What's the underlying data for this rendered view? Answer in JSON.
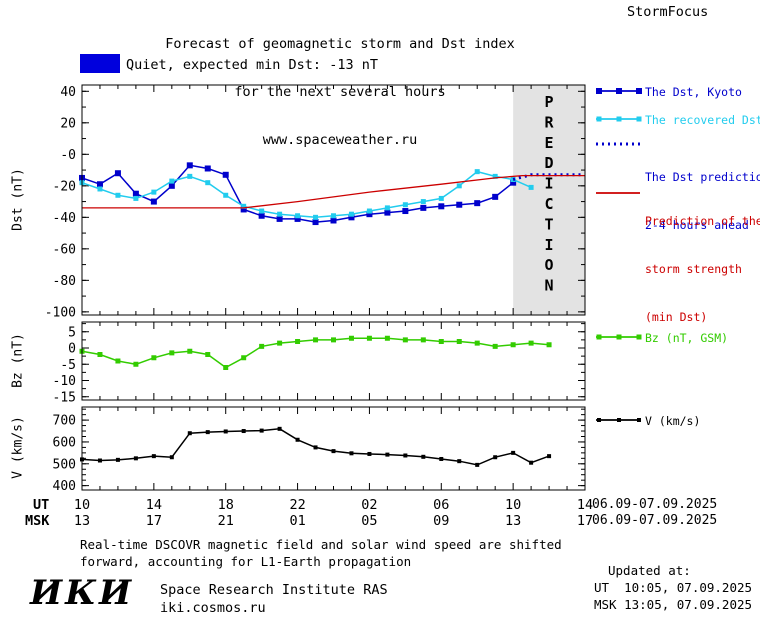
{
  "header": {
    "title_line1": "Forecast of geomagnetic storm and Dst index",
    "title_line2": "for the next several hours",
    "title_line3": "www.spaceweather.ru",
    "brand": "StormFocus"
  },
  "status": {
    "swatch_color": "#0000dd",
    "text": "Quiet, expected min Dst: -13 nT"
  },
  "legend": {
    "dst_kyoto": "The Dst, Kyoto",
    "recovered": "The recovered Dst",
    "prediction_line1": "The Dst prediction",
    "prediction_line2": "2-4 hours ahead",
    "storm_line1": "Prediction of the",
    "storm_line2": "storm strength",
    "storm_line3": "(min Dst)",
    "bz": "Bz (nT, GSM)",
    "v": "V (km/s)"
  },
  "axis": {
    "ut_label": "UT",
    "msk_label": "MSK",
    "ut_date_range": "06.09-07.09.2025",
    "msk_date_range": "06.09-07.09.2025"
  },
  "footer": {
    "note_line1": "Real-time DSCOVR magnetic field and solar wind speed are shifted",
    "note_line2": "forward, accounting for L1-Earth propagation",
    "logo": "ИКИ",
    "institute": "Space Research Institute RAS",
    "site": "iki.cosmos.ru",
    "updated_label": "Updated at:",
    "updated_ut": "UT  10:05, 07.09.2025",
    "updated_msk": "MSK 13:05, 07.09.2025"
  },
  "chart_data": {
    "type": "line",
    "x_range_hours": [
      0,
      28
    ],
    "x_major_tick_step": 4,
    "x_minor_tick_step": 1,
    "x_tick_labels_ut": [
      "10",
      "14",
      "18",
      "22",
      "02",
      "06",
      "10",
      "14"
    ],
    "x_tick_labels_msk": [
      "13",
      "17",
      "21",
      "01",
      "05",
      "09",
      "13",
      "17"
    ],
    "prediction_region": {
      "x_start": 24,
      "x_end": 28,
      "label": "PREDICTION",
      "fill": "#e3e3e3",
      "text_color": "#b3b3b3"
    },
    "panels": [
      {
        "name": "dst",
        "ylabel": "Dst (nT)",
        "ylim": [
          -102,
          44
        ],
        "yticks": [
          40,
          20,
          0,
          -20,
          -40,
          -60,
          -80,
          -100
        ],
        "ytick_labels": [
          "40",
          "20",
          "-0",
          "-20",
          "-40",
          "-60",
          "-80",
          "-100"
        ],
        "y_minor_step": 10,
        "shade_prediction": true,
        "series": [
          {
            "name": "dst_kyoto",
            "color": "#0000cc",
            "line_width": 1.5,
            "marker": "square",
            "marker_size": 6,
            "x": [
              0,
              1,
              2,
              3,
              4,
              5,
              6,
              7,
              8,
              9,
              10,
              11,
              12,
              13,
              14,
              15,
              16,
              17,
              18,
              19,
              20,
              21,
              22,
              23,
              24
            ],
            "y": [
              -15,
              -19,
              -12,
              -25,
              -30,
              -20,
              -7,
              -9,
              -13,
              -35,
              -39,
              -41,
              -41,
              -43,
              -42,
              -40,
              -38,
              -37,
              -36,
              -34,
              -33,
              -32,
              -31,
              -27,
              -18
            ]
          },
          {
            "name": "recovered_dst",
            "color": "#22ccee",
            "line_width": 1.5,
            "marker": "square",
            "marker_size": 5,
            "x": [
              0,
              1,
              2,
              3,
              4,
              5,
              6,
              7,
              8,
              9,
              10,
              11,
              12,
              13,
              14,
              15,
              16,
              17,
              18,
              19,
              20,
              21,
              22,
              23,
              24,
              25
            ],
            "y": [
              -18,
              -22,
              -26,
              -28,
              -24,
              -17,
              -14,
              -18,
              -26,
              -33,
              -36,
              -38,
              -39,
              -40,
              -39,
              -38,
              -36,
              -34,
              -32,
              -30,
              -28,
              -20,
              -11,
              -14,
              -16,
              -21
            ]
          },
          {
            "name": "dst_prediction",
            "color": "#0000cc",
            "line_width": 3,
            "dash": "2,4",
            "x": [
              24,
              25,
              28
            ],
            "y": [
              -16,
              -13,
              -13
            ]
          },
          {
            "name": "storm_prediction",
            "color": "#cc0000",
            "line_width": 1.3,
            "x": [
              0,
              9,
              12,
              16,
              20,
              23,
              24.5,
              28
            ],
            "y": [
              -34,
              -34,
              -30,
              -24,
              -19,
              -15,
              -13.5,
              -13.5
            ]
          }
        ]
      },
      {
        "name": "bz",
        "ylabel": "Bz (nT)",
        "ylim": [
          -16,
          8
        ],
        "yticks": [
          5,
          0,
          -5,
          -10,
          -15
        ],
        "ytick_labels": [
          "5",
          "0",
          "-5",
          "-10",
          "-15"
        ],
        "y_minor_step": 2.5,
        "shade_prediction": false,
        "series": [
          {
            "name": "bz",
            "color": "#33cc00",
            "line_width": 1.5,
            "marker": "square",
            "marker_size": 5,
            "x": [
              0,
              1,
              2,
              3,
              4,
              5,
              6,
              7,
              8,
              9,
              10,
              11,
              12,
              13,
              14,
              15,
              16,
              17,
              18,
              19,
              20,
              21,
              22,
              23,
              24,
              25,
              26
            ],
            "y": [
              -1,
              -2,
              -4,
              -5,
              -3,
              -1.5,
              -1,
              -2,
              -6,
              -3,
              0.5,
              1.5,
              2,
              2.5,
              2.5,
              3,
              3,
              3,
              2.5,
              2.5,
              2,
              2,
              1.5,
              0.5,
              1,
              1.5,
              1
            ]
          }
        ]
      },
      {
        "name": "v",
        "ylabel": "V (km/s)",
        "ylim": [
          380,
          760
        ],
        "yticks": [
          400,
          500,
          600,
          700
        ],
        "ytick_labels": [
          "400",
          "500",
          "600",
          "700"
        ],
        "y_minor_step": 25,
        "shade_prediction": false,
        "series": [
          {
            "name": "v",
            "color": "#000000",
            "line_width": 1.5,
            "marker": "square",
            "marker_size": 4,
            "x": [
              0,
              1,
              2,
              3,
              4,
              5,
              6,
              7,
              8,
              9,
              10,
              11,
              12,
              13,
              14,
              15,
              16,
              17,
              18,
              19,
              20,
              21,
              22,
              23,
              24,
              25,
              26
            ],
            "y": [
              520,
              515,
              518,
              525,
              535,
              530,
              640,
              645,
              648,
              650,
              652,
              660,
              610,
              575,
              558,
              548,
              545,
              542,
              538,
              532,
              522,
              512,
              495,
              530,
              550,
              505,
              535
            ]
          }
        ]
      }
    ]
  }
}
